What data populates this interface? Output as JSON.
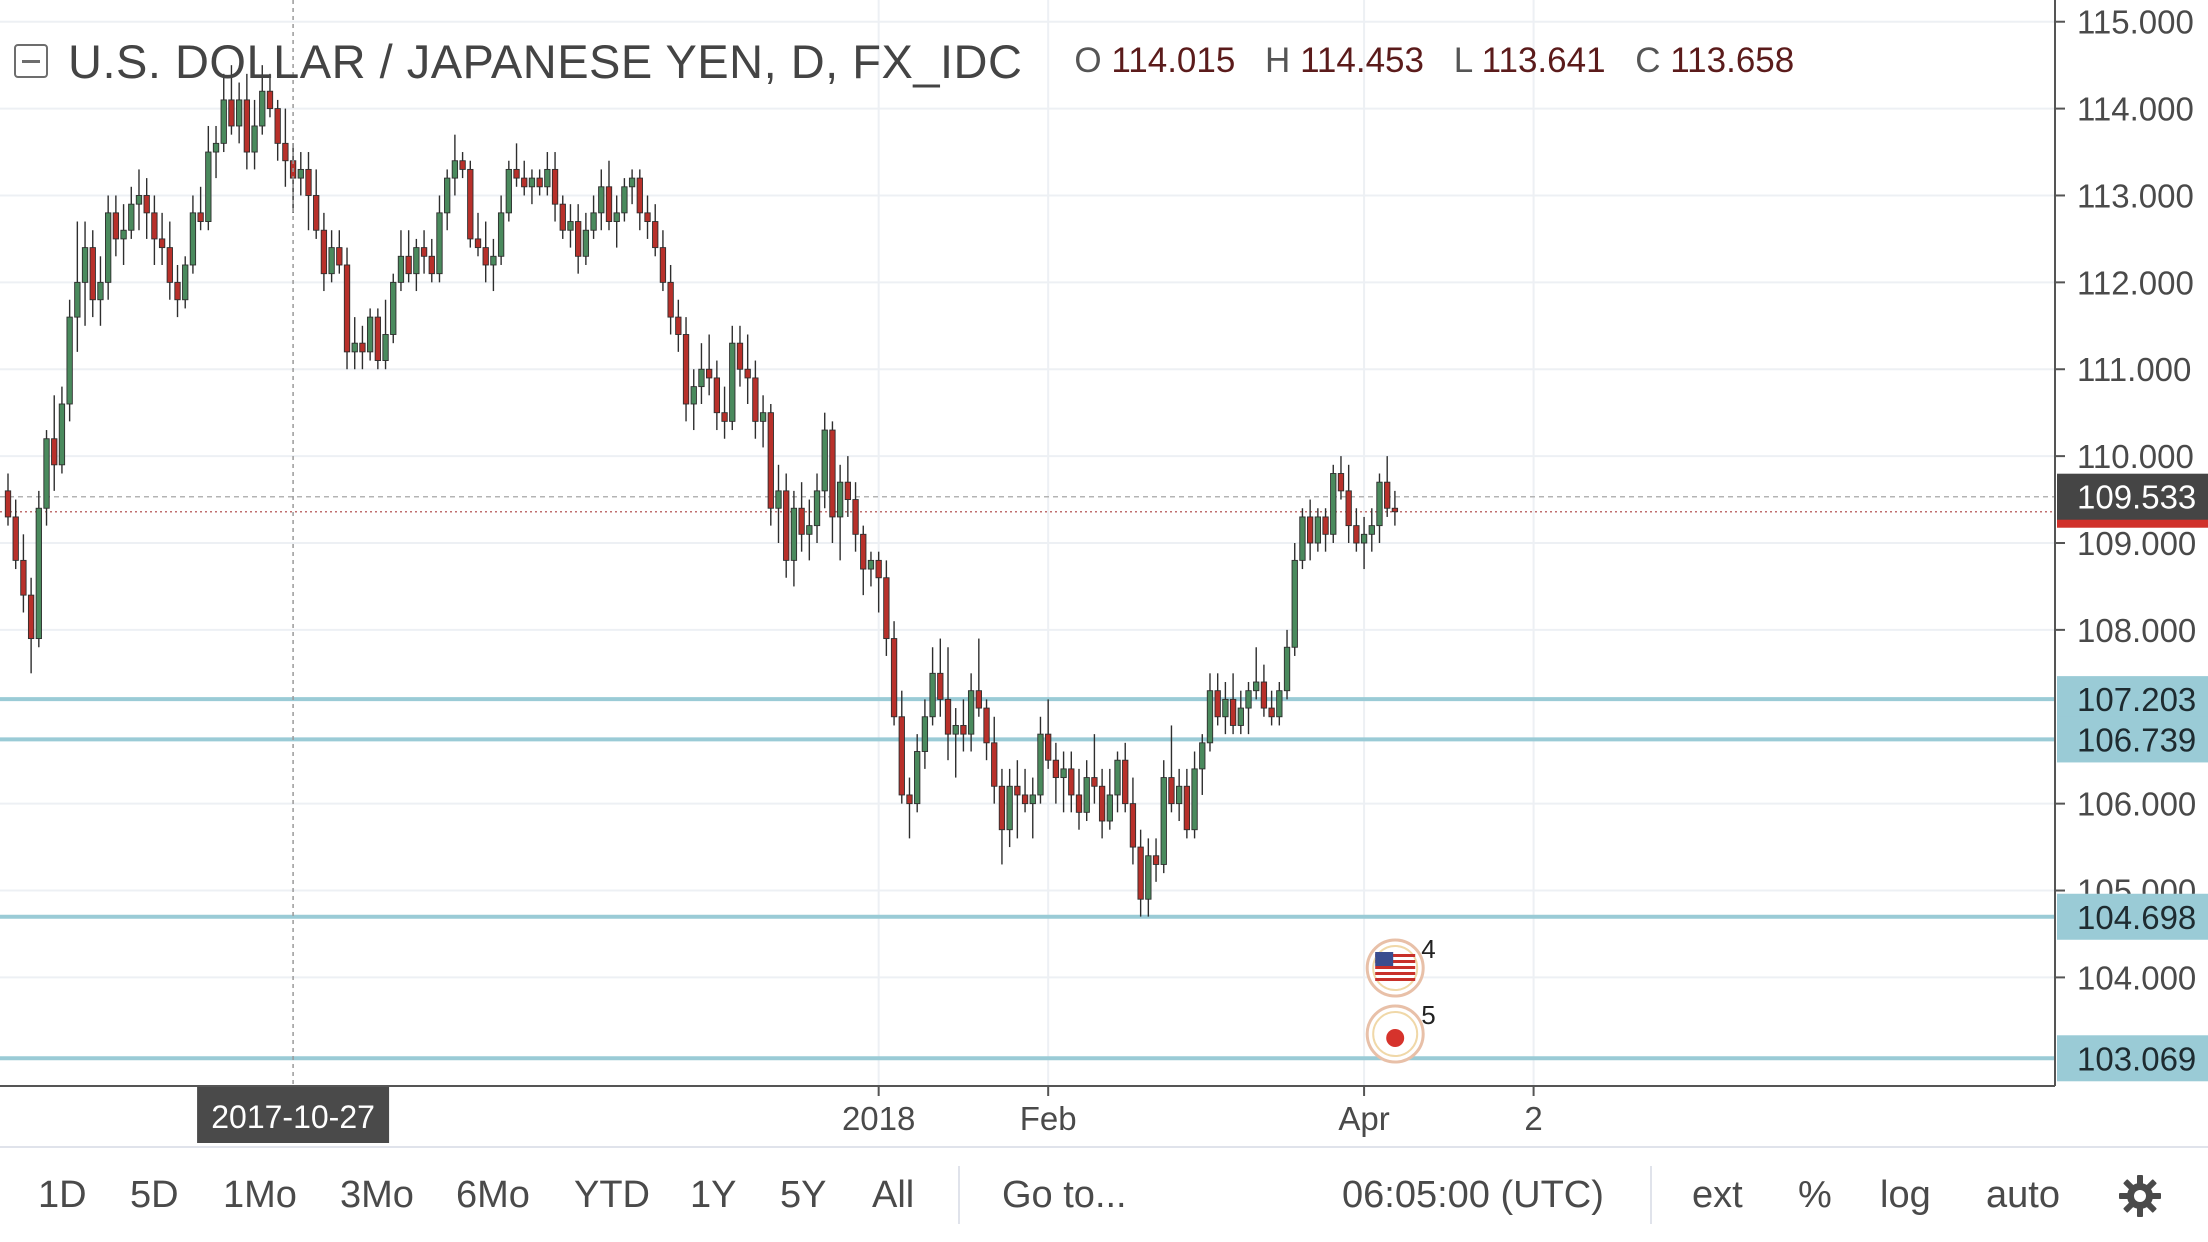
{
  "header": {
    "title": "U.S. DOLLAR / JAPANESE YEN, D, FX_IDC",
    "o_label": "O",
    "o_value": "114.015",
    "h_label": "H",
    "h_value": "114.453",
    "l_label": "L",
    "l_value": "113.641",
    "c_label": "C",
    "c_value": "113.658"
  },
  "toolbar": {
    "ranges": [
      "1D",
      "5D",
      "1Mo",
      "3Mo",
      "6Mo",
      "YTD",
      "1Y",
      "5Y",
      "All"
    ],
    "goto_label": "Go to...",
    "clock": "06:05:00 (UTC)",
    "ext_label": "ext",
    "percent_label": "%",
    "log_label": "log",
    "auto_label": "auto",
    "settings_icon": "gear-icon"
  },
  "colors": {
    "up": "#4a8a5d",
    "down": "#b8302a",
    "hline": "#9acbd6",
    "axis_text": "#4a4a4a",
    "grid": "#edf0f4",
    "price_label": "#454545",
    "last_price_bar": "#d0302a"
  },
  "chart_data": {
    "type": "candlestick",
    "title": "U.S. DOLLAR / JAPANESE YEN, D, FX_IDC",
    "ylim": [
      102.75,
      115.25
    ],
    "y_ticks": [
      "115.000",
      "114.000",
      "113.000",
      "112.000",
      "111.000",
      "110.000",
      "109.000",
      "108.000",
      "106.000",
      "105.000",
      "104.000"
    ],
    "x_ticks": [
      {
        "label": "2018",
        "index": 113
      },
      {
        "label": "Feb",
        "index": 135
      },
      {
        "label": "Apr",
        "index": 176
      },
      {
        "label": "2",
        "index": 198
      }
    ],
    "crosshair": {
      "date": "2017-10-27",
      "index": 37
    },
    "horizontal_lines": [
      {
        "label": "107.203",
        "value": 107.203
      },
      {
        "label": "106.739",
        "value": 106.739
      },
      {
        "label": "104.698",
        "value": 104.698
      },
      {
        "label": "103.069",
        "value": 103.069
      }
    ],
    "current_price": {
      "label": "109.533",
      "value": 109.533
    },
    "last_close": {
      "value": 109.36
    },
    "events": [
      {
        "flag": "US",
        "count": "4",
        "index": 179,
        "row": 0
      },
      {
        "flag": "JP",
        "count": "5",
        "index": 179,
        "row": 1
      }
    ],
    "candles": [
      [
        109.6,
        109.8,
        109.2,
        109.3
      ],
      [
        109.3,
        109.5,
        108.7,
        108.8
      ],
      [
        108.8,
        109.1,
        108.2,
        108.4
      ],
      [
        108.4,
        108.6,
        107.5,
        107.9
      ],
      [
        107.9,
        109.6,
        107.8,
        109.4
      ],
      [
        109.4,
        110.3,
        109.2,
        110.2
      ],
      [
        110.2,
        110.7,
        109.6,
        109.9
      ],
      [
        109.9,
        110.8,
        109.8,
        110.6
      ],
      [
        110.6,
        111.8,
        110.4,
        111.6
      ],
      [
        111.6,
        112.7,
        111.2,
        112.0
      ],
      [
        112.0,
        112.7,
        111.5,
        112.4
      ],
      [
        112.4,
        112.6,
        111.6,
        111.8
      ],
      [
        111.8,
        112.3,
        111.5,
        112.0
      ],
      [
        112.0,
        113.0,
        111.8,
        112.8
      ],
      [
        112.8,
        113.0,
        112.3,
        112.5
      ],
      [
        112.5,
        112.9,
        112.2,
        112.6
      ],
      [
        112.6,
        113.1,
        112.5,
        112.9
      ],
      [
        112.9,
        113.3,
        112.6,
        113.0
      ],
      [
        113.0,
        113.2,
        112.5,
        112.8
      ],
      [
        112.8,
        113.0,
        112.2,
        112.5
      ],
      [
        112.5,
        112.8,
        112.2,
        112.4
      ],
      [
        112.4,
        112.7,
        111.8,
        112.0
      ],
      [
        112.0,
        112.2,
        111.6,
        111.8
      ],
      [
        111.8,
        112.3,
        111.7,
        112.2
      ],
      [
        112.2,
        113.0,
        112.1,
        112.8
      ],
      [
        112.8,
        113.1,
        112.6,
        112.7
      ],
      [
        112.7,
        113.8,
        112.6,
        113.5
      ],
      [
        113.5,
        113.8,
        113.2,
        113.6
      ],
      [
        113.6,
        114.4,
        113.5,
        114.1
      ],
      [
        114.1,
        114.5,
        113.7,
        113.8
      ],
      [
        113.8,
        114.3,
        113.6,
        114.1
      ],
      [
        114.1,
        114.4,
        113.3,
        113.5
      ],
      [
        113.5,
        114.1,
        113.3,
        113.8
      ],
      [
        113.8,
        114.5,
        113.7,
        114.2
      ],
      [
        114.2,
        114.4,
        113.9,
        114.0
      ],
      [
        114.0,
        114.1,
        113.4,
        113.6
      ],
      [
        113.6,
        114.0,
        113.1,
        113.4
      ],
      [
        113.4,
        113.6,
        112.8,
        113.2
      ],
      [
        113.2,
        113.5,
        113.0,
        113.3
      ],
      [
        113.3,
        113.5,
        112.6,
        113.0
      ],
      [
        113.0,
        113.3,
        112.5,
        112.6
      ],
      [
        112.6,
        112.8,
        111.9,
        112.1
      ],
      [
        112.1,
        112.6,
        112.0,
        112.4
      ],
      [
        112.4,
        112.6,
        112.1,
        112.2
      ],
      [
        112.2,
        112.4,
        111.0,
        111.2
      ],
      [
        111.2,
        111.6,
        111.0,
        111.3
      ],
      [
        111.3,
        111.5,
        111.0,
        111.2
      ],
      [
        111.2,
        111.7,
        111.1,
        111.6
      ],
      [
        111.6,
        111.7,
        111.0,
        111.1
      ],
      [
        111.1,
        111.8,
        111.0,
        111.4
      ],
      [
        111.4,
        112.1,
        111.3,
        112.0
      ],
      [
        112.0,
        112.6,
        111.9,
        112.3
      ],
      [
        112.3,
        112.6,
        112.0,
        112.1
      ],
      [
        112.1,
        112.5,
        111.9,
        112.4
      ],
      [
        112.4,
        112.6,
        112.1,
        112.3
      ],
      [
        112.3,
        112.5,
        112.0,
        112.1
      ],
      [
        112.1,
        113.0,
        112.0,
        112.8
      ],
      [
        112.8,
        113.3,
        112.6,
        113.2
      ],
      [
        113.2,
        113.7,
        113.0,
        113.4
      ],
      [
        113.4,
        113.5,
        113.2,
        113.3
      ],
      [
        113.3,
        113.4,
        112.4,
        112.5
      ],
      [
        112.5,
        112.8,
        112.3,
        112.4
      ],
      [
        112.4,
        112.7,
        112.0,
        112.2
      ],
      [
        112.2,
        112.5,
        111.9,
        112.3
      ],
      [
        112.3,
        113.0,
        112.2,
        112.8
      ],
      [
        112.8,
        113.4,
        112.7,
        113.3
      ],
      [
        113.3,
        113.6,
        113.1,
        113.2
      ],
      [
        113.2,
        113.4,
        113.0,
        113.1
      ],
      [
        113.1,
        113.3,
        112.9,
        113.2
      ],
      [
        113.2,
        113.3,
        113.0,
        113.1
      ],
      [
        113.1,
        113.5,
        113.0,
        113.3
      ],
      [
        113.3,
        113.5,
        112.7,
        112.9
      ],
      [
        112.9,
        113.0,
        112.5,
        112.6
      ],
      [
        112.6,
        112.9,
        112.4,
        112.7
      ],
      [
        112.7,
        112.9,
        112.1,
        112.3
      ],
      [
        112.3,
        112.8,
        112.2,
        112.6
      ],
      [
        112.6,
        113.0,
        112.5,
        112.8
      ],
      [
        112.8,
        113.3,
        112.6,
        113.1
      ],
      [
        113.1,
        113.4,
        112.6,
        112.7
      ],
      [
        112.7,
        113.0,
        112.4,
        112.8
      ],
      [
        112.8,
        113.2,
        112.7,
        113.1
      ],
      [
        113.1,
        113.3,
        112.9,
        113.2
      ],
      [
        113.2,
        113.3,
        112.6,
        112.8
      ],
      [
        112.8,
        113.0,
        112.5,
        112.7
      ],
      [
        112.7,
        112.9,
        112.3,
        112.4
      ],
      [
        112.4,
        112.6,
        111.9,
        112.0
      ],
      [
        112.0,
        112.2,
        111.4,
        111.6
      ],
      [
        111.6,
        111.8,
        111.2,
        111.4
      ],
      [
        111.4,
        111.6,
        110.4,
        110.6
      ],
      [
        110.6,
        111.0,
        110.3,
        110.8
      ],
      [
        110.8,
        111.3,
        110.6,
        111.0
      ],
      [
        111.0,
        111.4,
        110.7,
        110.9
      ],
      [
        110.9,
        111.1,
        110.3,
        110.5
      ],
      [
        110.5,
        110.8,
        110.2,
        110.4
      ],
      [
        110.4,
        111.5,
        110.3,
        111.3
      ],
      [
        111.3,
        111.5,
        110.8,
        111.0
      ],
      [
        111.0,
        111.4,
        110.6,
        110.9
      ],
      [
        110.9,
        111.1,
        110.2,
        110.4
      ],
      [
        110.4,
        110.7,
        110.1,
        110.5
      ],
      [
        110.5,
        110.6,
        109.2,
        109.4
      ],
      [
        109.4,
        109.9,
        109.0,
        109.6
      ],
      [
        109.6,
        109.8,
        108.6,
        108.8
      ],
      [
        108.8,
        109.6,
        108.5,
        109.4
      ],
      [
        109.4,
        109.7,
        108.9,
        109.1
      ],
      [
        109.1,
        109.5,
        108.8,
        109.2
      ],
      [
        109.2,
        109.8,
        109.0,
        109.6
      ],
      [
        109.6,
        110.5,
        109.4,
        110.3
      ],
      [
        110.3,
        110.4,
        109.0,
        109.3
      ],
      [
        109.3,
        109.9,
        108.8,
        109.7
      ],
      [
        109.7,
        110.0,
        109.3,
        109.5
      ],
      [
        109.5,
        109.7,
        108.9,
        109.1
      ],
      [
        109.1,
        109.2,
        108.4,
        108.7
      ],
      [
        108.7,
        108.9,
        108.5,
        108.8
      ],
      [
        108.8,
        108.9,
        108.2,
        108.6
      ],
      [
        108.6,
        108.8,
        107.7,
        107.9
      ],
      [
        107.9,
        108.1,
        106.9,
        107.0
      ],
      [
        107.0,
        107.3,
        106.0,
        106.1
      ],
      [
        106.1,
        106.3,
        105.6,
        106.0
      ],
      [
        106.0,
        106.8,
        105.9,
        106.6
      ],
      [
        106.6,
        107.2,
        106.4,
        107.0
      ],
      [
        107.0,
        107.8,
        106.9,
        107.5
      ],
      [
        107.5,
        107.9,
        107.0,
        107.2
      ],
      [
        107.2,
        107.8,
        106.5,
        106.8
      ],
      [
        106.8,
        107.1,
        106.3,
        106.9
      ],
      [
        106.9,
        107.2,
        106.6,
        106.8
      ],
      [
        106.8,
        107.5,
        106.6,
        107.3
      ],
      [
        107.3,
        107.9,
        107.0,
        107.1
      ],
      [
        107.1,
        107.2,
        106.5,
        106.7
      ],
      [
        106.7,
        107.0,
        106.0,
        106.2
      ],
      [
        106.2,
        106.4,
        105.3,
        105.7
      ],
      [
        105.7,
        106.4,
        105.5,
        106.2
      ],
      [
        106.2,
        106.5,
        105.6,
        106.1
      ],
      [
        106.1,
        106.4,
        105.9,
        106.0
      ],
      [
        106.0,
        106.3,
        105.6,
        106.1
      ],
      [
        106.1,
        107.0,
        106.0,
        106.8
      ],
      [
        106.8,
        107.2,
        106.4,
        106.5
      ],
      [
        106.5,
        106.7,
        106.0,
        106.3
      ],
      [
        106.3,
        106.6,
        105.9,
        106.4
      ],
      [
        106.4,
        106.6,
        105.9,
        106.1
      ],
      [
        106.1,
        106.4,
        105.7,
        105.9
      ],
      [
        105.9,
        106.5,
        105.8,
        106.3
      ],
      [
        106.3,
        106.8,
        106.0,
        106.2
      ],
      [
        106.2,
        106.4,
        105.6,
        105.8
      ],
      [
        105.8,
        106.4,
        105.7,
        106.1
      ],
      [
        106.1,
        106.6,
        105.9,
        106.5
      ],
      [
        106.5,
        106.7,
        105.9,
        106.0
      ],
      [
        106.0,
        106.3,
        105.3,
        105.5
      ],
      [
        105.5,
        105.7,
        104.7,
        104.9
      ],
      [
        104.9,
        105.6,
        104.7,
        105.4
      ],
      [
        105.4,
        105.6,
        105.1,
        105.3
      ],
      [
        105.3,
        106.5,
        105.2,
        106.3
      ],
      [
        106.3,
        106.9,
        105.9,
        106.0
      ],
      [
        106.0,
        106.4,
        105.8,
        106.2
      ],
      [
        106.2,
        106.4,
        105.6,
        105.7
      ],
      [
        105.7,
        106.6,
        105.6,
        106.4
      ],
      [
        106.4,
        106.8,
        106.1,
        106.7
      ],
      [
        106.7,
        107.5,
        106.6,
        107.3
      ],
      [
        107.3,
        107.5,
        106.9,
        107.0
      ],
      [
        107.0,
        107.4,
        106.8,
        107.2
      ],
      [
        107.2,
        107.5,
        106.8,
        106.9
      ],
      [
        106.9,
        107.3,
        106.8,
        107.1
      ],
      [
        107.1,
        107.4,
        106.8,
        107.3
      ],
      [
        107.3,
        107.8,
        107.2,
        107.4
      ],
      [
        107.4,
        107.6,
        107.0,
        107.1
      ],
      [
        107.1,
        107.3,
        106.9,
        107.0
      ],
      [
        107.0,
        107.4,
        106.9,
        107.3
      ],
      [
        107.3,
        108.0,
        107.2,
        107.8
      ],
      [
        107.8,
        109.0,
        107.7,
        108.8
      ],
      [
        108.8,
        109.4,
        108.7,
        109.3
      ],
      [
        109.3,
        109.5,
        108.8,
        109.0
      ],
      [
        109.0,
        109.4,
        108.9,
        109.3
      ],
      [
        109.3,
        109.4,
        108.9,
        109.1
      ],
      [
        109.1,
        109.9,
        109.0,
        109.8
      ],
      [
        109.8,
        110.0,
        109.5,
        109.6
      ],
      [
        109.6,
        109.9,
        109.0,
        109.2
      ],
      [
        109.2,
        109.4,
        108.9,
        109.0
      ],
      [
        109.0,
        109.3,
        108.7,
        109.1
      ],
      [
        109.1,
        109.4,
        108.9,
        109.2
      ],
      [
        109.2,
        109.8,
        109.0,
        109.7
      ],
      [
        109.7,
        110.0,
        109.3,
        109.4
      ],
      [
        109.4,
        109.6,
        109.2,
        109.36
      ]
    ]
  }
}
